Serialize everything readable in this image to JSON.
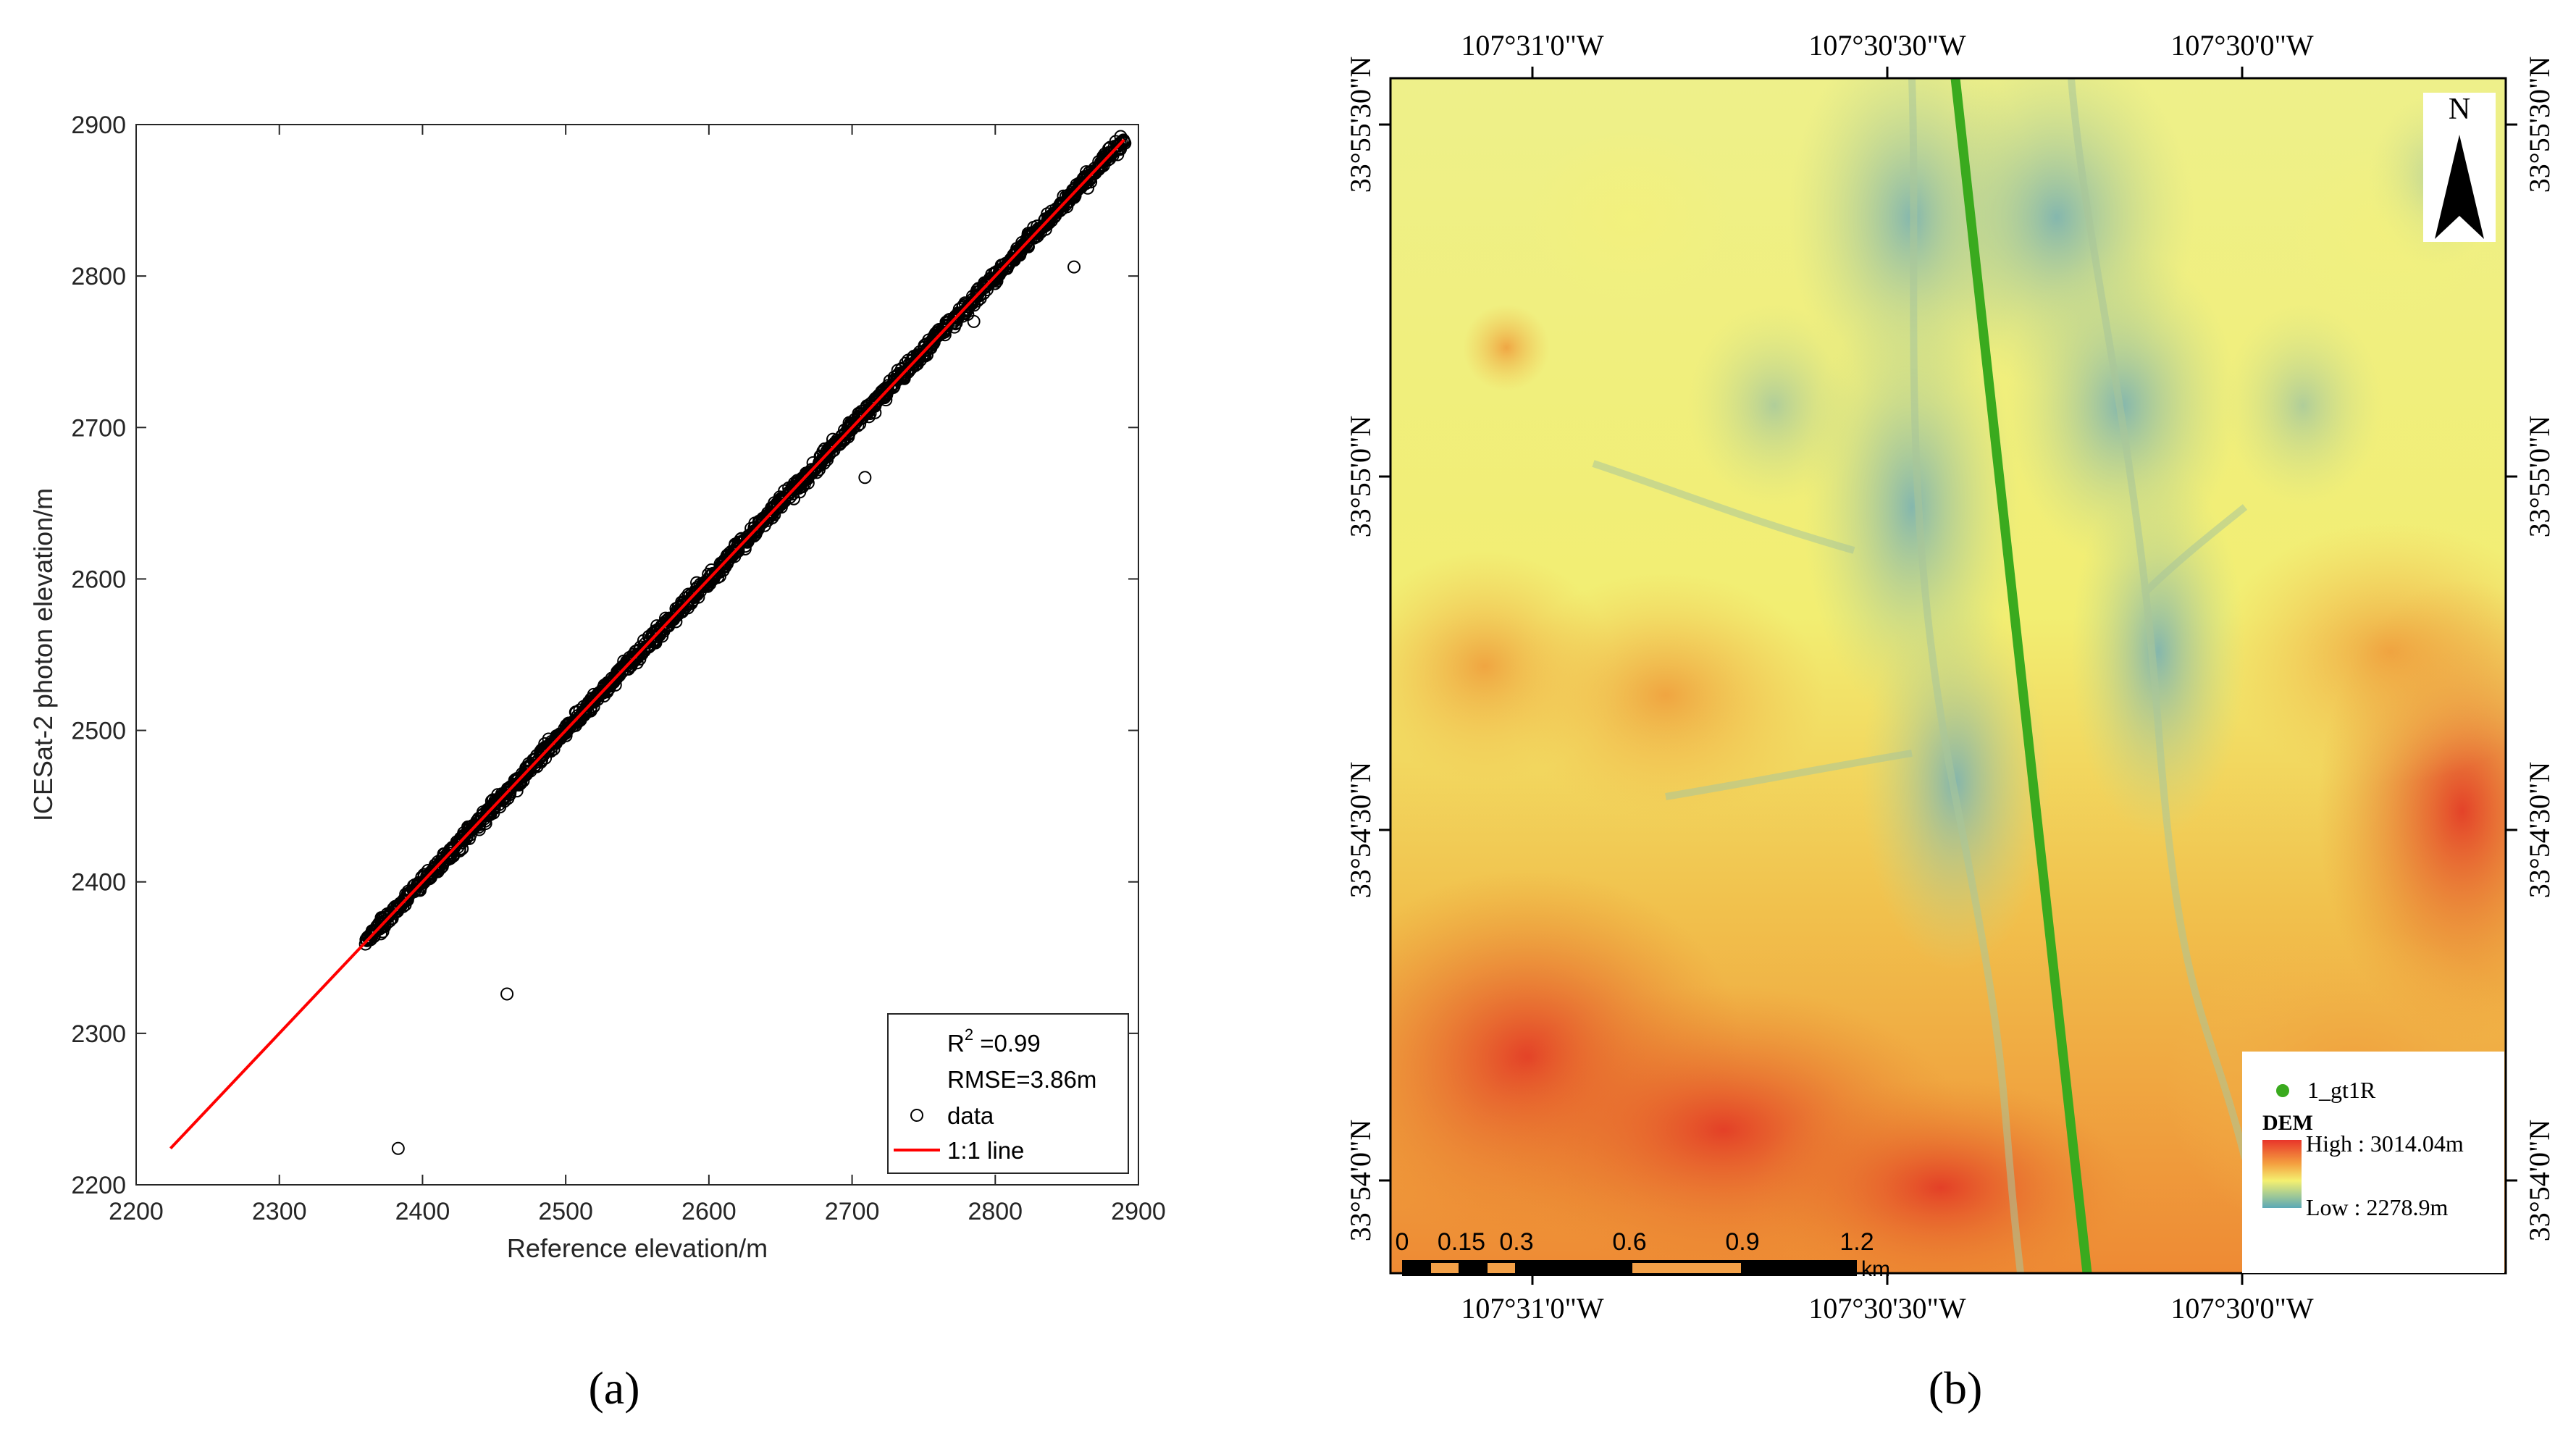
{
  "panel_a": {
    "label": "(a)",
    "chart_data": {
      "type": "scatter",
      "title": "",
      "xlabel": "Reference elevation/m",
      "ylabel": "ICESat-2 photon elevation/m",
      "xlim": [
        2200,
        2900
      ],
      "ylim": [
        2200,
        2900
      ],
      "x_ticks": [
        2200,
        2300,
        2400,
        2500,
        2600,
        2700,
        2800,
        2900
      ],
      "y_ticks": [
        2200,
        2300,
        2400,
        2500,
        2600,
        2700,
        2800,
        2900
      ],
      "x_tick_labels": [
        "2200",
        "2300",
        "2400",
        "2500",
        "2600",
        "2700",
        "2800",
        "2900"
      ],
      "y_tick_labels": [
        "2200",
        "2300",
        "2400",
        "2500",
        "2600",
        "2700",
        "2800",
        "2900"
      ],
      "grid": false,
      "series": [
        {
          "name": "data",
          "marker": "open-circle",
          "color": "#000000",
          "cluster_range": [
            2360,
            2890
          ],
          "cluster_spread_m": 4,
          "outliers": [
            [
              2383,
              2224
            ],
            [
              2459,
              2326
            ],
            [
              2709,
              2667
            ],
            [
              2855,
              2806
            ],
            [
              2785,
              2770
            ]
          ]
        },
        {
          "name": "1:1 line",
          "type": "line",
          "color": "#ff0000",
          "x": [
            2224,
            2890
          ],
          "y": [
            2224,
            2890
          ]
        }
      ],
      "stats": {
        "r2_label": "R",
        "r2_sup": "2",
        "r2_value": " =0.99",
        "rmse": "RMSE=3.86m"
      },
      "legend": {
        "position": "bottom-right",
        "entries": [
          "data",
          "1:1 line"
        ]
      }
    }
  },
  "panel_b": {
    "label": "(b)",
    "top_lon_labels": [
      "107°31'0\"W",
      "107°30'30\"W",
      "107°30'0\"W"
    ],
    "bottom_lon_labels": [
      "107°31'0\"W",
      "107°30'30\"W",
      "107°30'0\"W"
    ],
    "left_lat_labels": [
      "33°55'30\"N",
      "33°55'0\"N",
      "33°54'30\"N",
      "33°54'0\"N"
    ],
    "right_lat_labels": [
      "33°55'30\"N",
      "33°55'0\"N",
      "33°54'30\"N",
      "33°54'0\"N"
    ],
    "north_label": "N",
    "scale_bar": {
      "labels": [
        "0",
        "0.15",
        "0.3",
        "0.6",
        "0.9",
        "1.2"
      ],
      "unit": "km"
    },
    "legend": {
      "track_label": "1_gt1R",
      "dem_title": "DEM",
      "high_label": "High : 3014.04m",
      "low_label": "Low : 2278.9m"
    },
    "colors": {
      "track": "#3aaa1e",
      "dem_high": "#e8352a",
      "dem_mid": "#f4f070",
      "dem_low": "#5ba8b6"
    }
  }
}
